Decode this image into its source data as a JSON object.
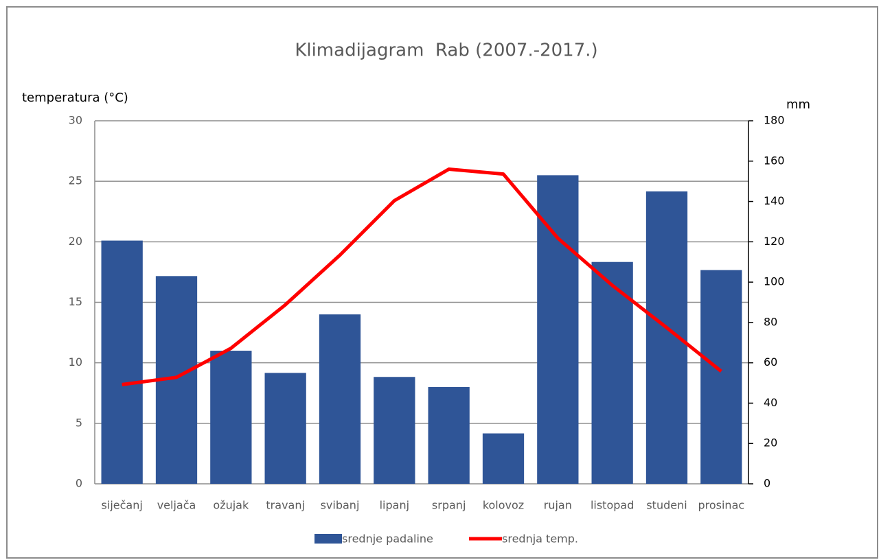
{
  "chart_data": {
    "type": "bar-line",
    "title": "Klimadijagram  Rab (2007.-2017.)",
    "y_label": "temperatura (°C)",
    "y2_label": "mm",
    "categories": [
      "siječanj",
      "veljača",
      "ožujak",
      "travanj",
      "svibanj",
      "lipanj",
      "srpanj",
      "kolovoz",
      "rujan",
      "listopad",
      "studeni",
      "prosinac"
    ],
    "series": [
      {
        "name": "srednje padaline",
        "type": "bar",
        "axis": "y2",
        "color": "#2f5597",
        "values": [
          120.6,
          103,
          66,
          55,
          84,
          53,
          48,
          25,
          153,
          110,
          145,
          106
        ]
      },
      {
        "name": "srednja temp.",
        "type": "line",
        "axis": "y",
        "color": "#ff0000",
        "values": [
          8.2,
          8.8,
          11.2,
          14.8,
          18.9,
          23.4,
          26.0,
          25.6,
          20.3,
          16.4,
          12.9,
          9.3
        ]
      }
    ],
    "ylim": [
      0,
      30
    ],
    "yticks": [
      0,
      5,
      10,
      15,
      20,
      25,
      30
    ],
    "y2lim": [
      0,
      180
    ],
    "y2ticks": [
      0,
      20,
      40,
      60,
      80,
      100,
      120,
      140,
      160,
      180
    ],
    "grid": true,
    "legend": "bottom"
  }
}
